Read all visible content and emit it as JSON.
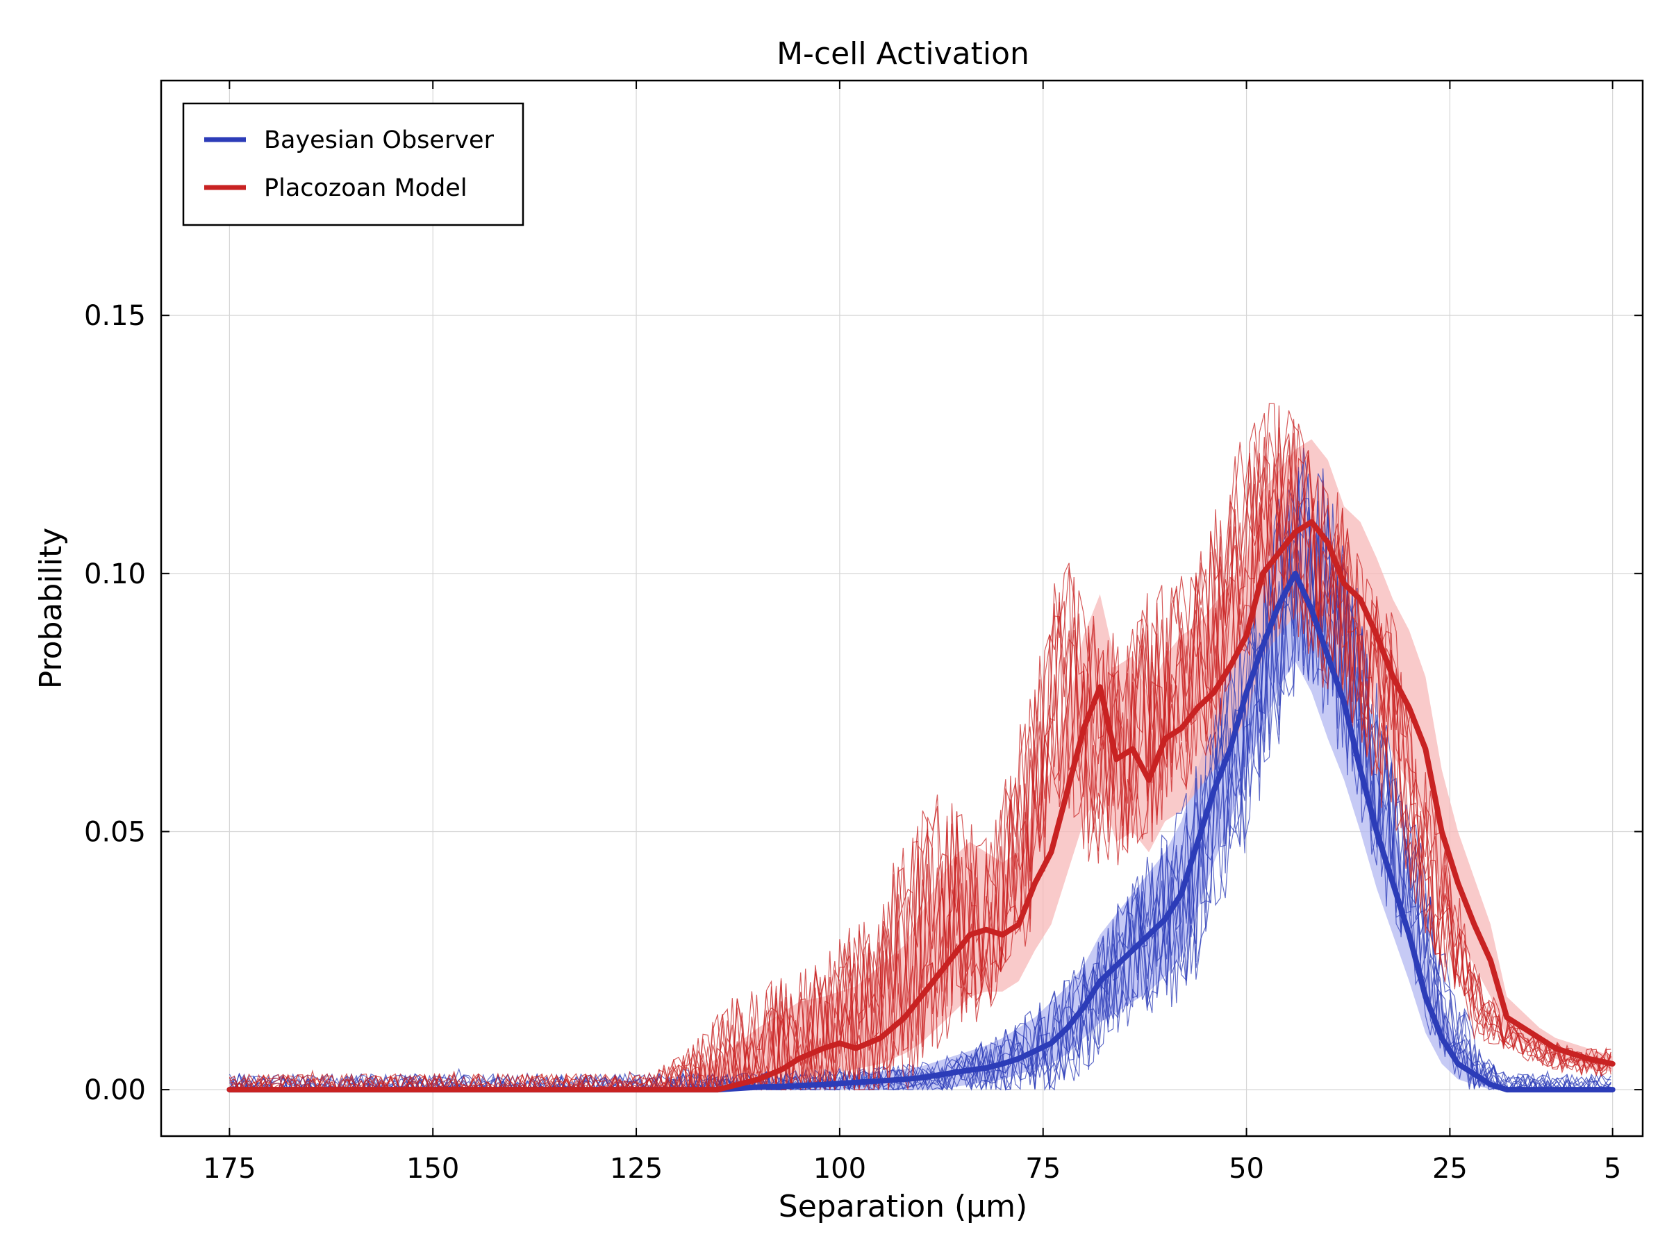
{
  "chart_data": {
    "type": "line",
    "title": "M-cell Activation",
    "xlabel": "Separation (μm)",
    "ylabel": "Probability",
    "x_reversed": true,
    "xlim": [
      183.4,
      1.3
    ],
    "ylim": [
      -0.009,
      0.1955
    ],
    "x_ticks": [
      175,
      150,
      125,
      100,
      75,
      50,
      25,
      5
    ],
    "y_ticks": [
      0.0,
      0.05,
      0.1,
      0.15
    ],
    "y_tick_labels": [
      "0.00",
      "0.05",
      "0.10",
      "0.15"
    ],
    "grid": true,
    "legend_position": "top-left",
    "x": [
      175,
      170,
      165,
      160,
      155,
      150,
      145,
      140,
      135,
      130,
      125,
      120,
      115,
      110,
      107,
      105,
      102,
      100,
      98,
      95,
      92,
      90,
      88,
      86,
      84,
      82,
      80,
      78,
      76,
      74,
      72,
      70,
      68,
      66,
      64,
      62,
      60,
      58,
      56,
      54,
      52,
      50,
      48,
      46,
      44,
      42,
      40,
      38,
      36,
      34,
      32,
      30,
      28,
      26,
      24,
      22,
      20,
      18,
      16,
      14,
      12,
      10,
      8,
      5
    ],
    "series": [
      {
        "name": "Bayesian Observer",
        "color": "#2c3cb8",
        "band_color": "#b3b8f2",
        "values": [
          0,
          0,
          0,
          0,
          0,
          0,
          0,
          0,
          0,
          0,
          0,
          0,
          0,
          0.0005,
          0.0006,
          0.0008,
          0.001,
          0.0012,
          0.0014,
          0.0017,
          0.002,
          0.0023,
          0.0028,
          0.0033,
          0.0038,
          0.0042,
          0.005,
          0.006,
          0.0075,
          0.009,
          0.012,
          0.016,
          0.021,
          0.024,
          0.027,
          0.03,
          0.033,
          0.038,
          0.048,
          0.058,
          0.066,
          0.077,
          0.086,
          0.094,
          0.1,
          0.093,
          0.084,
          0.075,
          0.062,
          0.05,
          0.04,
          0.03,
          0.018,
          0.01,
          0.005,
          0.003,
          0.001,
          0,
          0,
          0,
          0,
          0,
          0,
          0
        ],
        "band_low": [
          0,
          0,
          0,
          0,
          0,
          0,
          0,
          0,
          0,
          0,
          0,
          0,
          0,
          0,
          0,
          0,
          0,
          0,
          0,
          0,
          0,
          0,
          0,
          0.0005,
          0.001,
          0.0015,
          0.002,
          0.003,
          0.004,
          0.005,
          0.007,
          0.01,
          0.013,
          0.015,
          0.017,
          0.019,
          0.022,
          0.026,
          0.035,
          0.044,
          0.052,
          0.062,
          0.07,
          0.078,
          0.083,
          0.077,
          0.068,
          0.06,
          0.05,
          0.039,
          0.03,
          0.021,
          0.011,
          0.005,
          0.002,
          0.001,
          0,
          0,
          0,
          0,
          0,
          0,
          0,
          0
        ],
        "band_high": [
          0,
          0,
          0,
          0,
          0,
          0,
          0,
          0,
          0,
          0,
          0,
          0,
          0,
          0.001,
          0.0012,
          0.0015,
          0.002,
          0.0025,
          0.003,
          0.0035,
          0.004,
          0.0045,
          0.0055,
          0.0065,
          0.0075,
          0.0085,
          0.01,
          0.012,
          0.014,
          0.017,
          0.02,
          0.024,
          0.03,
          0.034,
          0.038,
          0.042,
          0.046,
          0.052,
          0.062,
          0.073,
          0.082,
          0.093,
          0.102,
          0.11,
          0.117,
          0.11,
          0.101,
          0.09,
          0.075,
          0.062,
          0.051,
          0.04,
          0.026,
          0.016,
          0.009,
          0.005,
          0.002,
          0.0005,
          0,
          0,
          0,
          0,
          0,
          0
        ]
      },
      {
        "name": "Placozoan Model",
        "color": "#c82222",
        "band_color": "#f7b8b8",
        "values": [
          0,
          0,
          0,
          0,
          0,
          0,
          0,
          0,
          0,
          0,
          0,
          0,
          0,
          0.002,
          0.004,
          0.006,
          0.008,
          0.009,
          0.008,
          0.01,
          0.014,
          0.018,
          0.022,
          0.026,
          0.03,
          0.031,
          0.03,
          0.032,
          0.04,
          0.046,
          0.058,
          0.07,
          0.078,
          0.064,
          0.066,
          0.06,
          0.068,
          0.07,
          0.074,
          0.077,
          0.082,
          0.088,
          0.1,
          0.104,
          0.108,
          0.11,
          0.106,
          0.098,
          0.095,
          0.088,
          0.08,
          0.074,
          0.066,
          0.05,
          0.04,
          0.032,
          0.025,
          0.014,
          0.012,
          0.01,
          0.008,
          0.007,
          0.006,
          0.005
        ],
        "band_low": [
          0,
          0,
          0,
          0,
          0,
          0,
          0,
          0,
          0,
          0,
          0,
          0,
          0,
          0.0005,
          0.001,
          0.002,
          0.003,
          0.0035,
          0.004,
          0.005,
          0.007,
          0.009,
          0.012,
          0.015,
          0.018,
          0.019,
          0.019,
          0.021,
          0.027,
          0.032,
          0.042,
          0.052,
          0.058,
          0.048,
          0.05,
          0.046,
          0.052,
          0.054,
          0.058,
          0.062,
          0.066,
          0.072,
          0.084,
          0.088,
          0.092,
          0.094,
          0.09,
          0.083,
          0.08,
          0.073,
          0.065,
          0.059,
          0.052,
          0.038,
          0.03,
          0.024,
          0.018,
          0.01,
          0.009,
          0.008,
          0.006,
          0.005,
          0.004,
          0.0035
        ],
        "band_high": [
          0,
          0,
          0,
          0,
          0,
          0,
          0,
          0,
          0,
          0,
          0.0005,
          0.002,
          0.006,
          0.012,
          0.015,
          0.017,
          0.018,
          0.019,
          0.02,
          0.024,
          0.028,
          0.034,
          0.04,
          0.045,
          0.048,
          0.046,
          0.044,
          0.046,
          0.055,
          0.062,
          0.074,
          0.088,
          0.096,
          0.082,
          0.084,
          0.076,
          0.084,
          0.088,
          0.09,
          0.094,
          0.098,
          0.104,
          0.116,
          0.12,
          0.124,
          0.126,
          0.122,
          0.113,
          0.11,
          0.103,
          0.095,
          0.089,
          0.08,
          0.062,
          0.05,
          0.041,
          0.032,
          0.018,
          0.015,
          0.012,
          0.01,
          0.009,
          0.008,
          0.0065
        ]
      }
    ]
  }
}
